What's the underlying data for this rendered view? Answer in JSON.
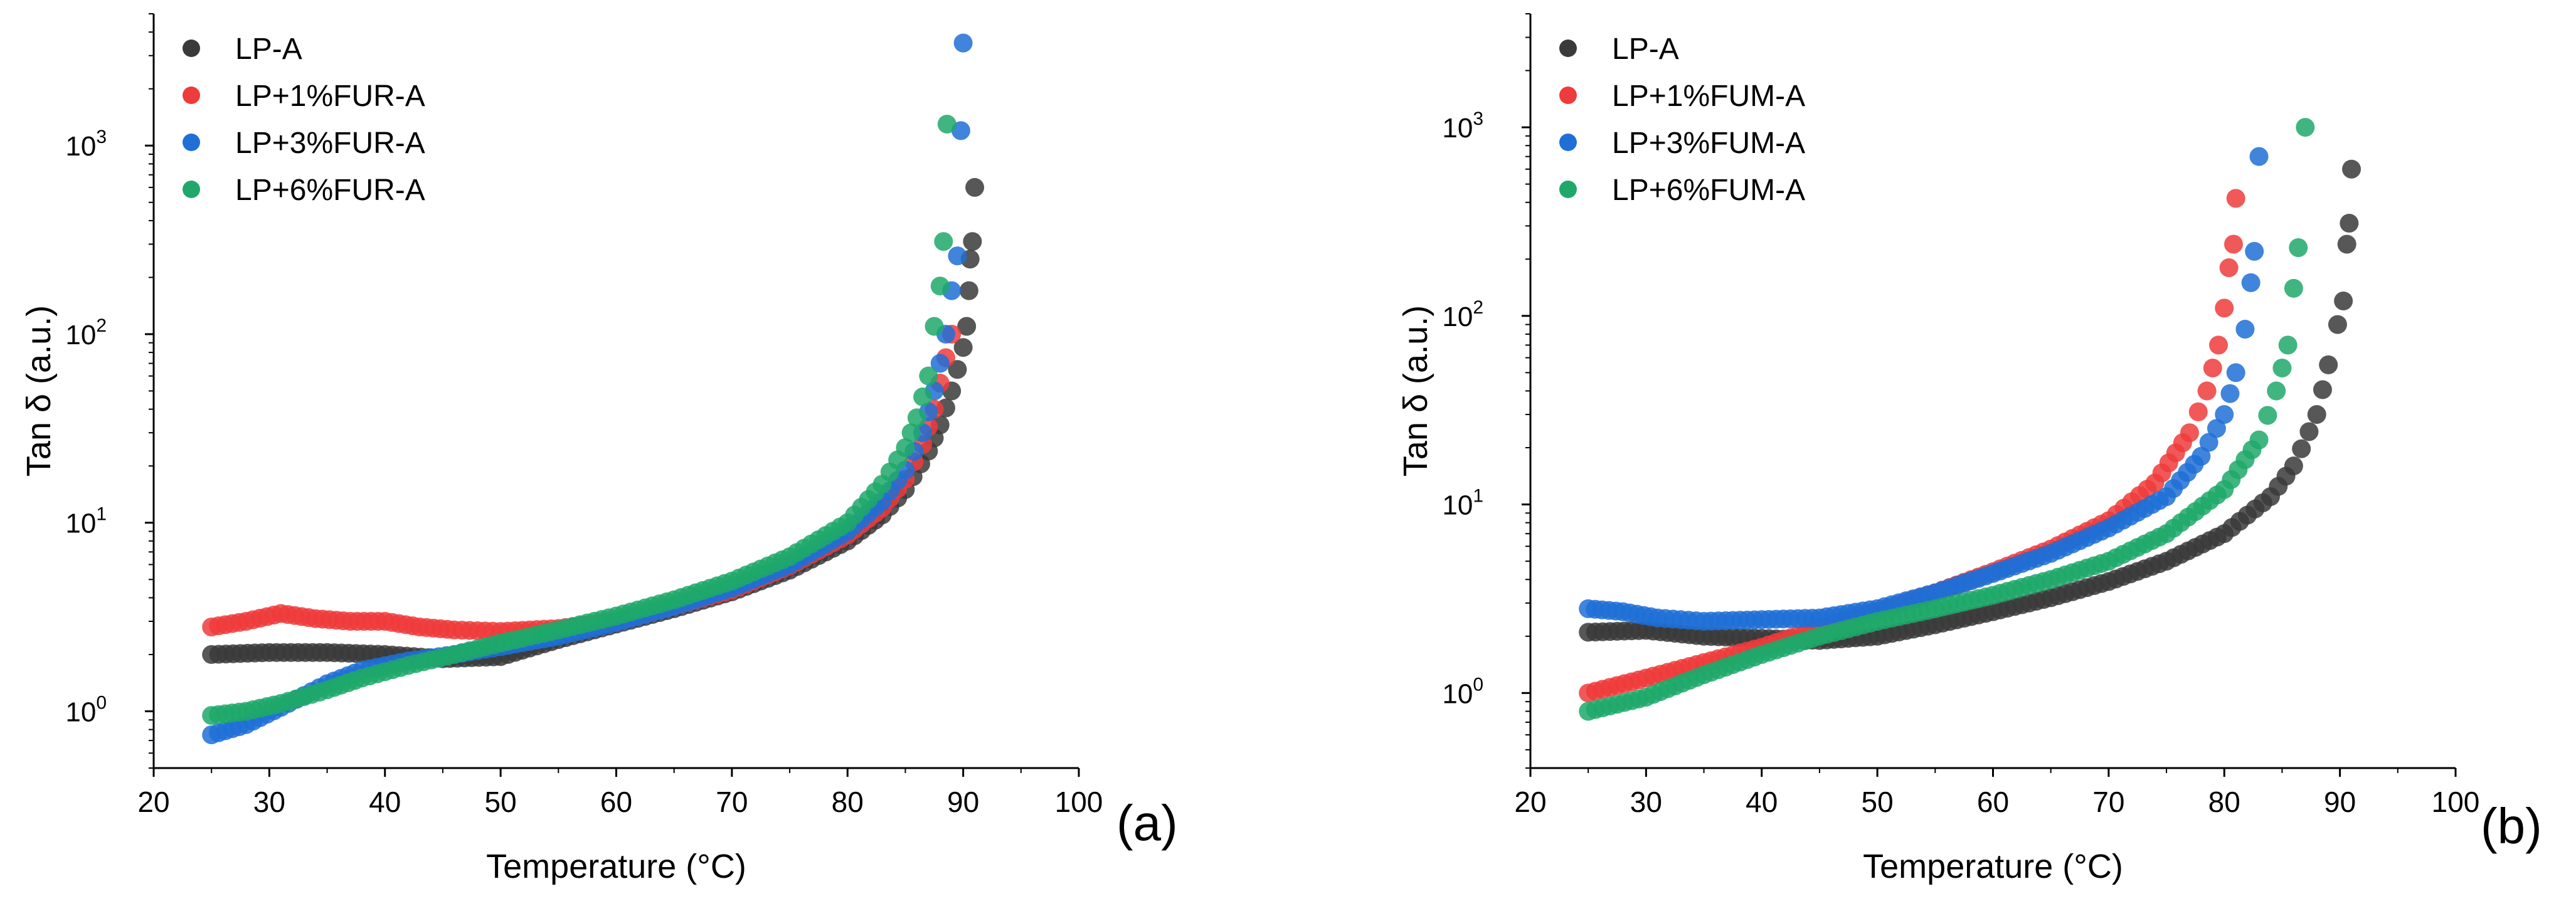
{
  "colors": {
    "black": "#3a3a3a",
    "red": "#ee3b3b",
    "blue": "#1f6fd6",
    "green": "#1fa86a"
  },
  "chart_data": [
    {
      "type": "scatter",
      "panel_label": "(a)",
      "xlabel": "Temperature (°C)",
      "ylabel": "Tan δ (a.u.)",
      "xlim": [
        20,
        100
      ],
      "ylim": [
        0.5,
        5000
      ],
      "yscale": "log",
      "xticks": [
        "20",
        "30",
        "40",
        "50",
        "60",
        "70",
        "80",
        "90",
        "100"
      ],
      "yticks": [
        {
          "base": "10",
          "exp": "0",
          "value": 1
        },
        {
          "base": "10",
          "exp": "1",
          "value": 10
        },
        {
          "base": "10",
          "exp": "2",
          "value": 100
        },
        {
          "base": "10",
          "exp": "3",
          "value": 1000
        }
      ],
      "legend_position": "top-left",
      "series": [
        {
          "name": "LP-A",
          "color": "black",
          "x": [
            25,
            30,
            35,
            40,
            45,
            50,
            55,
            60,
            65,
            70,
            75,
            80,
            83,
            85,
            87,
            88,
            89,
            89.5,
            90,
            90.3,
            90.5,
            90.6,
            90.8,
            91
          ],
          "y": [
            2.0,
            2.05,
            2.05,
            2.0,
            1.9,
            1.95,
            2.4,
            2.9,
            3.5,
            4.3,
            5.6,
            8.0,
            11,
            15,
            24,
            33,
            50,
            65,
            85,
            110,
            170,
            250,
            310,
            600
          ]
        },
        {
          "name": "LP+1%FUR-A",
          "color": "red",
          "x": [
            25,
            28,
            31,
            34,
            37,
            40,
            43,
            46,
            50,
            55,
            60,
            65,
            70,
            75,
            80,
            83,
            85,
            86.5,
            87.5,
            88,
            88.5,
            89
          ],
          "y": [
            2.8,
            3.0,
            3.3,
            3.1,
            3.0,
            3.0,
            2.8,
            2.7,
            2.65,
            2.75,
            3.0,
            3.6,
            4.4,
            5.9,
            8.6,
            12,
            17,
            26,
            40,
            55,
            75,
            100
          ]
        },
        {
          "name": "LP+3%FUR-A",
          "color": "blue",
          "x": [
            25,
            28,
            31,
            35,
            38,
            42,
            46,
            50,
            55,
            60,
            65,
            70,
            75,
            80,
            83,
            85,
            86.5,
            87.5,
            88,
            88.5,
            89,
            89.5,
            89.8,
            90
          ],
          "y": [
            0.75,
            0.85,
            1.05,
            1.4,
            1.65,
            1.85,
            2.0,
            2.2,
            2.5,
            2.95,
            3.6,
            4.5,
            6.0,
            9.0,
            13,
            19,
            30,
            50,
            70,
            100,
            170,
            260,
            1200,
            3500
          ]
        },
        {
          "name": "LP+6%FUR-A",
          "color": "green",
          "x": [
            25,
            28,
            31,
            35,
            38,
            42,
            46,
            50,
            55,
            60,
            65,
            70,
            75,
            80,
            83,
            85,
            86,
            87,
            87.5,
            88,
            88.3,
            88.6
          ],
          "y": [
            0.95,
            1.0,
            1.1,
            1.3,
            1.5,
            1.75,
            2.0,
            2.3,
            2.7,
            3.2,
            3.9,
            4.9,
            6.6,
            10,
            16,
            25,
            36,
            60,
            110,
            180,
            310,
            1300
          ]
        }
      ]
    },
    {
      "type": "scatter",
      "panel_label": "(b)",
      "xlabel": "Temperature (°C)",
      "ylabel": "Tan δ (a.u.)",
      "xlim": [
        20,
        100
      ],
      "ylim": [
        0.4,
        4000
      ],
      "yscale": "log",
      "xticks": [
        "20",
        "30",
        "40",
        "50",
        "60",
        "70",
        "80",
        "90",
        "100"
      ],
      "yticks": [
        {
          "base": "10",
          "exp": "0",
          "value": 1
        },
        {
          "base": "10",
          "exp": "1",
          "value": 10
        },
        {
          "base": "10",
          "exp": "2",
          "value": 100
        },
        {
          "base": "10",
          "exp": "3",
          "value": 1000
        }
      ],
      "legend_position": "top-left",
      "series": [
        {
          "name": "LP-A",
          "color": "black",
          "x": [
            25,
            30,
            35,
            40,
            45,
            50,
            55,
            60,
            65,
            70,
            75,
            80,
            84,
            86,
            88,
            89,
            89.8,
            90.3,
            90.6,
            90.8,
            91
          ],
          "y": [
            2.1,
            2.15,
            2.0,
            1.95,
            1.9,
            2.0,
            2.3,
            2.7,
            3.2,
            3.9,
            5.0,
            7.0,
            11,
            16,
            30,
            55,
            90,
            120,
            240,
            310,
            600
          ]
        },
        {
          "name": "LP+1%FUM-A",
          "color": "red",
          "x": [
            25,
            30,
            35,
            40,
            45,
            50,
            55,
            60,
            65,
            70,
            74,
            77,
            78.5,
            79.5,
            80,
            80.4,
            80.8,
            81
          ],
          "y": [
            1.0,
            1.2,
            1.45,
            1.75,
            2.2,
            2.7,
            3.4,
            4.4,
            5.8,
            8.2,
            13,
            24,
            40,
            70,
            110,
            180,
            240,
            420
          ]
        },
        {
          "name": "LP+3%FUM-A",
          "color": "blue",
          "x": [
            25,
            28,
            31,
            35,
            40,
            45,
            50,
            55,
            60,
            65,
            70,
            75,
            78,
            80,
            81,
            81.8,
            82.3,
            82.6,
            83
          ],
          "y": [
            2.8,
            2.7,
            2.5,
            2.4,
            2.45,
            2.5,
            2.8,
            3.4,
            4.3,
            5.5,
            7.5,
            11,
            18,
            30,
            50,
            85,
            150,
            220,
            700
          ]
        },
        {
          "name": "LP+6%FUM-A",
          "color": "green",
          "x": [
            25,
            30,
            35,
            40,
            45,
            50,
            55,
            60,
            65,
            70,
            75,
            80,
            83,
            84.5,
            85.5,
            86,
            86.4,
            87
          ],
          "y": [
            0.8,
            0.95,
            1.25,
            1.6,
            2.0,
            2.4,
            2.8,
            3.3,
            4.0,
            5.0,
            7.0,
            12,
            22,
            40,
            70,
            140,
            230,
            1000
          ]
        }
      ]
    }
  ]
}
